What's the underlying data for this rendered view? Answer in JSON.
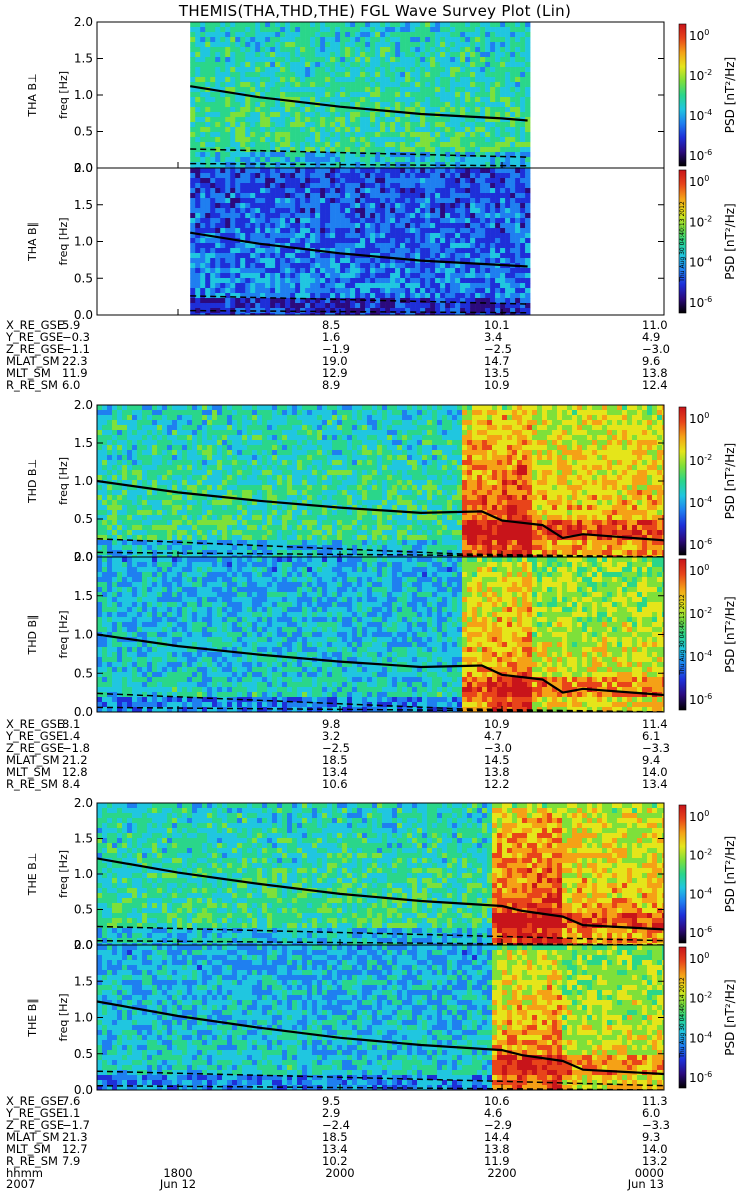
{
  "chart_data": {
    "type": "heatmap",
    "title": "THEMIS(THA,THD,THE) FGL Wave Survey Plot (Lin)",
    "ylim": [
      0,
      2
    ],
    "y_ticks": [
      "0.0",
      "0.5",
      "1.0",
      "1.5",
      "2.0"
    ],
    "ylabel": "freq [Hz]",
    "colorbar": {
      "label": "PSD [nT²/Hz]",
      "ticks": [
        {
          "base": "10",
          "exp": "0"
        },
        {
          "base": "10",
          "exp": "-2"
        },
        {
          "base": "10",
          "exp": "-4"
        },
        {
          "base": "10",
          "exp": "-6"
        }
      ],
      "colors": [
        "#000000",
        "#2b0a7e",
        "#1e2fd8",
        "#1f7ff0",
        "#20c6e0",
        "#2ad68a",
        "#7ee03a",
        "#e5e51a",
        "#f5a116",
        "#e8441a",
        "#c8141a"
      ]
    },
    "x_range_hhmm": [
      1700,
      2400
    ],
    "x_ticks": [
      {
        "hhmm": "1800",
        "date": "Jun 12",
        "year": "2007"
      },
      {
        "hhmm": "2000",
        "date": ""
      },
      {
        "hhmm": "2200",
        "date": ""
      },
      {
        "hhmm": "0000",
        "date": "Jun 13"
      }
    ],
    "axis_year_label": "2007",
    "axis_hhmm_label": "hhmm",
    "panels": [
      {
        "label": "THA B⊥",
        "probe": "THA",
        "component": "perp",
        "data_start": 1809,
        "data_end": 2219,
        "solid_line": [
          [
            1809,
            1.12
          ],
          [
            1900,
            0.97
          ],
          [
            2000,
            0.84
          ],
          [
            2100,
            0.74
          ],
          [
            2200,
            0.68
          ],
          [
            2219,
            0.65
          ]
        ],
        "dashed_upper": [
          [
            1809,
            0.26
          ],
          [
            2219,
            0.15
          ]
        ],
        "dashed_lower": [
          [
            1809,
            0.06
          ],
          [
            2219,
            0.03
          ]
        ],
        "stamp": ""
      },
      {
        "label": "THA B∥",
        "probe": "THA",
        "component": "par",
        "data_start": 1809,
        "data_end": 2219,
        "solid_line": [
          [
            1809,
            1.12
          ],
          [
            1900,
            0.97
          ],
          [
            2000,
            0.84
          ],
          [
            2100,
            0.74
          ],
          [
            2200,
            0.68
          ],
          [
            2219,
            0.66
          ]
        ],
        "dashed_upper": [
          [
            1809,
            0.26
          ],
          [
            2219,
            0.15
          ]
        ],
        "dashed_lower": [
          [
            1809,
            0.06
          ],
          [
            2219,
            0.03
          ]
        ],
        "stamp": "Thu Aug 30 04:40:13 2012"
      },
      {
        "label": "THD B⊥",
        "probe": "THD",
        "component": "perp",
        "data_start": 1700,
        "data_end": 2400,
        "solid_line": [
          [
            1700,
            1.0
          ],
          [
            1800,
            0.85
          ],
          [
            1900,
            0.74
          ],
          [
            2000,
            0.65
          ],
          [
            2100,
            0.58
          ],
          [
            2145,
            0.6
          ],
          [
            2200,
            0.48
          ],
          [
            2230,
            0.42
          ],
          [
            2245,
            0.25
          ],
          [
            2300,
            0.3
          ],
          [
            2400,
            0.22
          ]
        ],
        "dashed_upper": [
          [
            1700,
            0.24
          ],
          [
            2130,
            0.04
          ],
          [
            2400,
            0.0
          ]
        ],
        "dashed_lower": [
          [
            1700,
            0.06
          ],
          [
            2400,
            0.0
          ]
        ],
        "stamp": ""
      },
      {
        "label": "THD B∥",
        "probe": "THD",
        "component": "par",
        "data_start": 1700,
        "data_end": 2400,
        "solid_line": [
          [
            1700,
            1.0
          ],
          [
            1800,
            0.85
          ],
          [
            1900,
            0.74
          ],
          [
            2000,
            0.65
          ],
          [
            2100,
            0.58
          ],
          [
            2145,
            0.6
          ],
          [
            2200,
            0.48
          ],
          [
            2230,
            0.42
          ],
          [
            2245,
            0.25
          ],
          [
            2300,
            0.3
          ],
          [
            2400,
            0.22
          ]
        ],
        "dashed_upper": [
          [
            1700,
            0.24
          ],
          [
            2130,
            0.04
          ],
          [
            2400,
            0.0
          ]
        ],
        "dashed_lower": [
          [
            1700,
            0.06
          ],
          [
            2400,
            0.0
          ]
        ],
        "stamp": "Thu Aug 30 04:40:13 2012"
      },
      {
        "label": "THE B⊥",
        "probe": "THE",
        "component": "perp",
        "data_start": 1700,
        "data_end": 2400,
        "solid_line": [
          [
            1700,
            1.22
          ],
          [
            1800,
            1.02
          ],
          [
            1900,
            0.86
          ],
          [
            2000,
            0.72
          ],
          [
            2100,
            0.62
          ],
          [
            2200,
            0.55
          ],
          [
            2215,
            0.48
          ],
          [
            2245,
            0.4
          ],
          [
            2300,
            0.28
          ],
          [
            2400,
            0.22
          ]
        ],
        "dashed_upper": [
          [
            1700,
            0.26
          ],
          [
            2200,
            0.12
          ],
          [
            2400,
            0.06
          ]
        ],
        "dashed_lower": [
          [
            1700,
            0.06
          ],
          [
            2400,
            0.0
          ]
        ],
        "stamp": ""
      },
      {
        "label": "THE B∥",
        "probe": "THE",
        "component": "par",
        "data_start": 1700,
        "data_end": 2400,
        "solid_line": [
          [
            1700,
            1.22
          ],
          [
            1800,
            1.02
          ],
          [
            1900,
            0.86
          ],
          [
            2000,
            0.72
          ],
          [
            2100,
            0.62
          ],
          [
            2200,
            0.55
          ],
          [
            2215,
            0.48
          ],
          [
            2245,
            0.4
          ],
          [
            2300,
            0.28
          ],
          [
            2400,
            0.22
          ]
        ],
        "dashed_upper": [
          [
            1700,
            0.26
          ],
          [
            2200,
            0.12
          ],
          [
            2400,
            0.06
          ]
        ],
        "dashed_lower": [
          [
            1700,
            0.06
          ],
          [
            2400,
            0.0
          ]
        ],
        "stamp": "Thu Aug 30 04:40:14 2012"
      }
    ],
    "ephemeris": [
      {
        "rows": [
          {
            "label": "X_RE_GSE",
            "values": [
              "5.9",
              "8.5",
              "10.1",
              "11.0"
            ]
          },
          {
            "label": "Y_RE_GSE",
            "values": [
              "−0.3",
              "1.6",
              "3.4",
              "4.9"
            ]
          },
          {
            "label": "Z_RE_GSE",
            "values": [
              "−1.1",
              "−1.9",
              "−2.5",
              "−3.0"
            ]
          },
          {
            "label": "MLAT_SM",
            "values": [
              "22.3",
              "19.0",
              "14.7",
              "9.6"
            ]
          },
          {
            "label": "MLT_SM",
            "values": [
              "11.9",
              "12.9",
              "13.5",
              "13.8"
            ]
          },
          {
            "label": "R_RE_SM",
            "values": [
              "6.0",
              "8.9",
              "10.9",
              "12.4"
            ]
          }
        ]
      },
      {
        "rows": [
          {
            "label": "X_RE_GSE",
            "values": [
              "8.1",
              "9.8",
              "10.9",
              "11.4"
            ]
          },
          {
            "label": "Y_RE_GSE",
            "values": [
              "1.4",
              "3.2",
              "4.7",
              "6.1"
            ]
          },
          {
            "label": "Z_RE_GSE",
            "values": [
              "−1.8",
              "−2.5",
              "−3.0",
              "−3.3"
            ]
          },
          {
            "label": "MLAT_SM",
            "values": [
              "21.2",
              "18.5",
              "14.5",
              "9.4"
            ]
          },
          {
            "label": "MLT_SM",
            "values": [
              "12.8",
              "13.4",
              "13.8",
              "14.0"
            ]
          },
          {
            "label": "R_RE_SM",
            "values": [
              "8.4",
              "10.6",
              "12.2",
              "13.4"
            ]
          }
        ]
      },
      {
        "rows": [
          {
            "label": "X_RE_GSE",
            "values": [
              "7.6",
              "9.5",
              "10.6",
              "11.3"
            ]
          },
          {
            "label": "Y_RE_GSE",
            "values": [
              "1.1",
              "2.9",
              "4.6",
              "6.0"
            ]
          },
          {
            "label": "Z_RE_GSE",
            "values": [
              "−1.7",
              "−2.4",
              "−2.9",
              "−3.3"
            ]
          },
          {
            "label": "MLAT_SM",
            "values": [
              "21.3",
              "18.5",
              "14.4",
              "9.3"
            ]
          },
          {
            "label": "MLT_SM",
            "values": [
              "12.7",
              "13.4",
              "13.8",
              "14.0"
            ]
          },
          {
            "label": "R_RE_SM",
            "values": [
              "7.9",
              "10.2",
              "11.9",
              "13.2"
            ]
          }
        ]
      }
    ]
  }
}
